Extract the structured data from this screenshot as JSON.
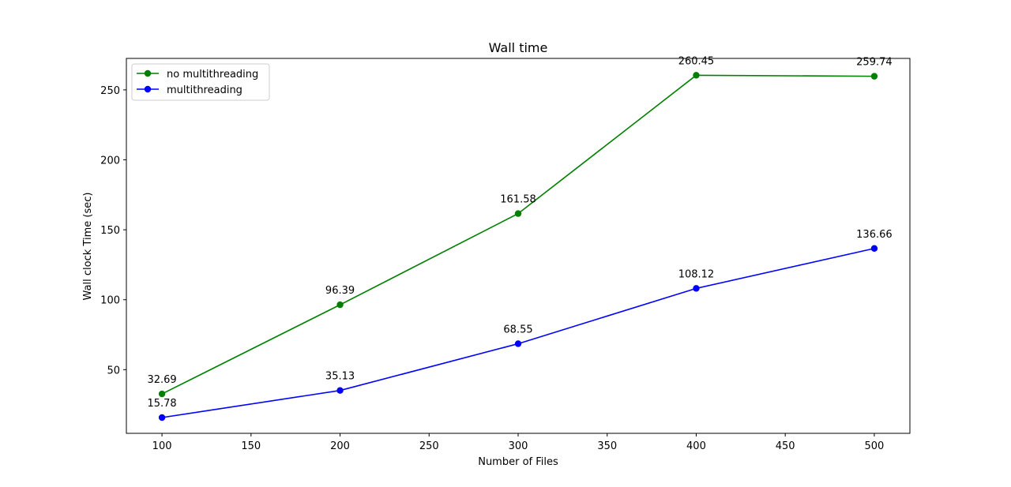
{
  "chart_data": {
    "type": "line",
    "title": "Wall time",
    "xlabel": "Number of Files",
    "ylabel": "Wall clock Time (sec)",
    "x": [
      100,
      200,
      300,
      400,
      500
    ],
    "xlim": [
      80,
      520
    ],
    "ylim": [
      4.5,
      272.5
    ],
    "xticks": [
      100,
      150,
      200,
      250,
      300,
      350,
      400,
      450,
      500
    ],
    "yticks": [
      50,
      100,
      150,
      200,
      250
    ],
    "grid": false,
    "legend_position": "upper-left",
    "series": [
      {
        "name": "no multithreading",
        "color": "#008000",
        "marker": "circle",
        "values": [
          32.69,
          96.39,
          161.58,
          260.45,
          259.74
        ],
        "labels": [
          "32.69",
          "96.39",
          "161.58",
          "260.45",
          "259.74"
        ]
      },
      {
        "name": "multithreading",
        "color": "#0000ff",
        "marker": "circle",
        "values": [
          15.78,
          35.13,
          68.55,
          108.12,
          136.66
        ],
        "labels": [
          "15.78",
          "35.13",
          "68.55",
          "108.12",
          "136.66"
        ]
      }
    ]
  }
}
